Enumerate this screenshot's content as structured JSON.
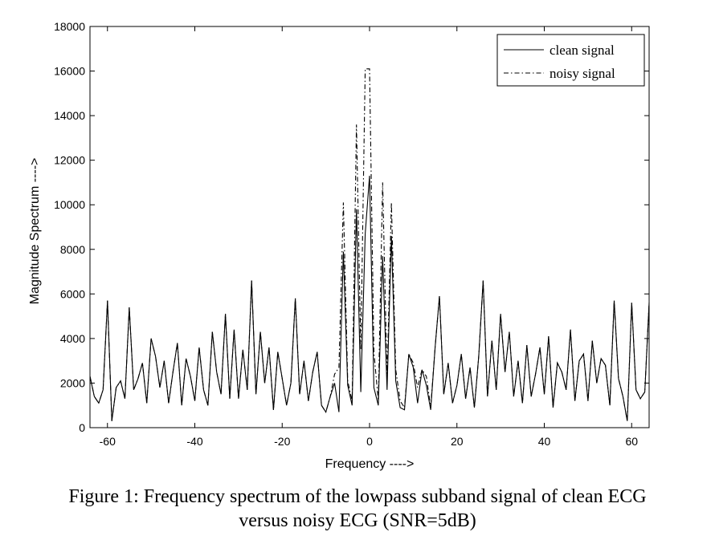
{
  "chart_data": {
    "type": "line",
    "xlabel": "Frequency ---->",
    "ylabel": "Magnitude Spectrum ---->",
    "xlim": [
      -64,
      64
    ],
    "ylim": [
      0,
      18000
    ],
    "xticks": [
      -60,
      -40,
      -20,
      0,
      20,
      40,
      60
    ],
    "yticks": [
      0,
      2000,
      4000,
      6000,
      8000,
      10000,
      12000,
      14000,
      16000,
      18000
    ],
    "grid": false,
    "legend_position": "top-right",
    "x": [
      -64,
      -63,
      -62,
      -61,
      -60,
      -59,
      -58,
      -57,
      -56,
      -55,
      -54,
      -53,
      -52,
      -51,
      -50,
      -49,
      -48,
      -47,
      -46,
      -45,
      -44,
      -43,
      -42,
      -41,
      -40,
      -39,
      -38,
      -37,
      -36,
      -35,
      -34,
      -33,
      -32,
      -31,
      -30,
      -29,
      -28,
      -27,
      -26,
      -25,
      -24,
      -23,
      -22,
      -21,
      -20,
      -19,
      -18,
      -17,
      -16,
      -15,
      -14,
      -13,
      -12,
      -11,
      -10,
      -9,
      -8,
      -7,
      -6,
      -5,
      -4,
      -3,
      -2,
      -1,
      0,
      1,
      2,
      3,
      4,
      5,
      6,
      7,
      8,
      9,
      10,
      11,
      12,
      13,
      14,
      15,
      16,
      17,
      18,
      19,
      20,
      21,
      22,
      23,
      24,
      25,
      26,
      27,
      28,
      29,
      30,
      31,
      32,
      33,
      34,
      35,
      36,
      37,
      38,
      39,
      40,
      41,
      42,
      43,
      44,
      45,
      46,
      47,
      48,
      49,
      50,
      51,
      52,
      53,
      54,
      55,
      56,
      57,
      58,
      59,
      60,
      61,
      62,
      63,
      64
    ],
    "series": [
      {
        "name": "clean signal",
        "style": "solid",
        "values": [
          2300,
          1400,
          1100,
          1700,
          5700,
          300,
          1800,
          2100,
          1300,
          5400,
          1700,
          2200,
          2900,
          1100,
          4000,
          3200,
          1800,
          3000,
          1100,
          2500,
          3800,
          1000,
          3100,
          2300,
          1200,
          3600,
          1700,
          1000,
          4300,
          2500,
          1500,
          5100,
          1300,
          4400,
          1300,
          3500,
          1700,
          6600,
          1500,
          4300,
          2000,
          3600,
          800,
          3400,
          2200,
          1000,
          2000,
          5800,
          1500,
          3000,
          1200,
          2500,
          3400,
          1000,
          700,
          1400,
          2000,
          700,
          7900,
          1900,
          1000,
          9800,
          1600,
          8700,
          11300,
          1800,
          1000,
          7700,
          1700,
          8600,
          2100,
          900,
          800,
          3300,
          2700,
          1100,
          2600,
          1900,
          800,
          3600,
          5900,
          1500,
          2900,
          1100,
          1900,
          3300,
          1300,
          2700,
          900,
          3200,
          6600,
          1400,
          3900,
          1700,
          5100,
          2500,
          4300,
          1400,
          3000,
          1100,
          3700,
          1400,
          2400,
          3600,
          1500,
          4100,
          900,
          2900,
          2500,
          1700,
          4400,
          1200,
          3000,
          3300,
          1200,
          3900,
          2000,
          3100,
          2800,
          1000,
          5700,
          2200,
          1400,
          300,
          5600,
          1700,
          1300,
          1600,
          5600
        ]
      },
      {
        "name": "noisy signal",
        "style": "dash-dot",
        "values": [
          2300,
          1400,
          1100,
          1700,
          5700,
          300,
          1800,
          2100,
          1300,
          5400,
          1700,
          2200,
          2900,
          1100,
          4000,
          3200,
          1800,
          3000,
          1100,
          2500,
          3800,
          1000,
          3100,
          2300,
          1200,
          3600,
          1700,
          1000,
          4300,
          2500,
          1500,
          5100,
          1300,
          4400,
          1300,
          3500,
          1700,
          6600,
          1500,
          4300,
          2000,
          3600,
          800,
          3400,
          2200,
          1000,
          2000,
          5800,
          1500,
          3000,
          1200,
          2500,
          3400,
          1000,
          700,
          1400,
          2400,
          2700,
          10100,
          2100,
          1200,
          13600,
          3500,
          16100,
          16100,
          3400,
          1200,
          11000,
          2200,
          10100,
          2600,
          1200,
          900,
          3300,
          2900,
          1800,
          2600,
          2300,
          900,
          3600,
          5900,
          1500,
          2900,
          1100,
          1900,
          3300,
          1300,
          2700,
          900,
          3200,
          6600,
          1400,
          3900,
          1700,
          5100,
          2500,
          4300,
          1400,
          3000,
          1100,
          3700,
          1400,
          2400,
          3600,
          1500,
          4100,
          900,
          2900,
          2500,
          1700,
          4400,
          1200,
          3000,
          3300,
          1200,
          3900,
          2000,
          3100,
          2800,
          1000,
          5700,
          2200,
          1400,
          300,
          5600,
          1700,
          1300,
          1600,
          5600
        ]
      }
    ]
  },
  "caption": {
    "line1": "Figure 1: Frequency spectrum of the lowpass subband signal of clean ECG",
    "line2": "versus noisy ECG (SNR=5dB)"
  },
  "colors": {
    "line": "#000000",
    "background": "#ffffff"
  }
}
